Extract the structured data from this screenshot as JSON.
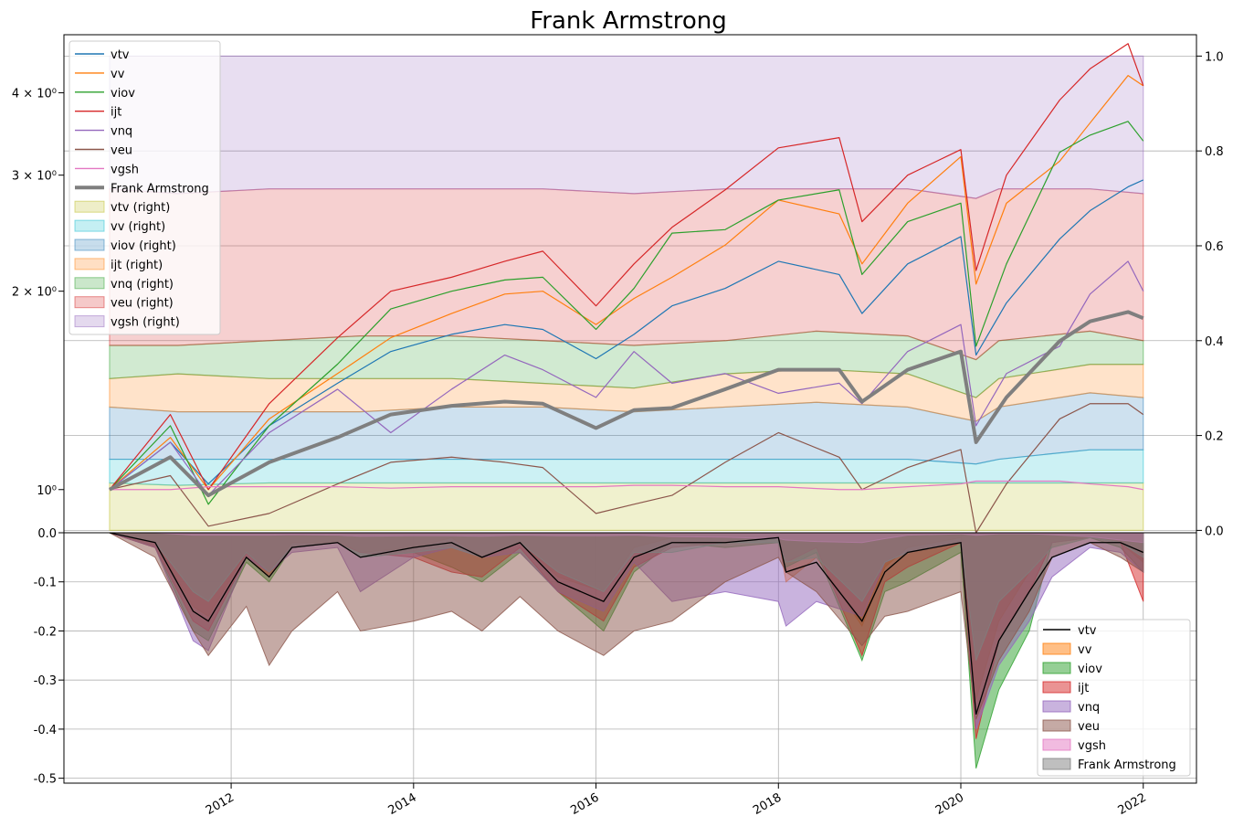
{
  "colors": {
    "vtv": "#1f77b4",
    "vv": "#ff7f0e",
    "viov": "#2ca02c",
    "ijt": "#d62728",
    "vnq": "#9467bd",
    "veu": "#8c564b",
    "vgsh": "#e377c2",
    "frank": "#7f7f7f",
    "fill_vtv": "#bcbd22",
    "fill_vv": "#17becf",
    "fill_viov": "#1f77b4",
    "fill_ijt": "#ff7f0e",
    "fill_vnq": "#2ca02c",
    "fill_veu": "#d62728",
    "fill_vgsh": "#9467bd",
    "dd_vtv": "#000000"
  },
  "chart_data": [
    {
      "type": "line",
      "title": "Frank Armstrong",
      "yscale": "log",
      "ylim": [
        0.86,
        4.9
      ],
      "xlim": [
        "2010-03-01",
        "2022-08-01"
      ],
      "left_ytick_labels": [
        {
          "value": 1,
          "label": "10⁰"
        },
        {
          "value": 2,
          "label": "2 × 10⁰"
        },
        {
          "value": 3,
          "label": "3 × 10⁰"
        },
        {
          "value": 4,
          "label": "4 × 10⁰"
        }
      ],
      "right_ylim": [
        -0.005,
        1.045
      ],
      "right_yticks": [
        "0.0",
        "0.2",
        "0.4",
        "0.6",
        "0.8",
        "1.0"
      ],
      "grid": true,
      "legend_position": "top-left",
      "legend": [
        "vtv",
        "vv",
        "viov",
        "ijt",
        "vnq",
        "veu",
        "vgsh",
        "Frank Armstrong",
        "vtv (right)",
        "vv (right)",
        "viov (right)",
        "ijt (right)",
        "vnq (right)",
        "veu (right)",
        "vgsh (right)"
      ],
      "x_dates": [
        "2010-09",
        "2011-05",
        "2011-10",
        "2012-06",
        "2013-03",
        "2013-10",
        "2014-06",
        "2015-01",
        "2015-06",
        "2016-01",
        "2016-06",
        "2016-11",
        "2017-06",
        "2018-01",
        "2018-09",
        "2018-12",
        "2019-06",
        "2020-01",
        "2020-03",
        "2020-07",
        "2021-02",
        "2021-06",
        "2021-11",
        "2022-01"
      ],
      "series": [
        {
          "name": "vtv",
          "values": [
            1.0,
            1.18,
            1.02,
            1.25,
            1.45,
            1.62,
            1.72,
            1.78,
            1.75,
            1.58,
            1.72,
            1.9,
            2.02,
            2.22,
            2.12,
            1.85,
            2.2,
            2.42,
            1.6,
            1.92,
            2.4,
            2.65,
            2.88,
            2.95
          ]
        },
        {
          "name": "vv",
          "values": [
            1.0,
            1.2,
            1.0,
            1.28,
            1.5,
            1.7,
            1.85,
            1.98,
            2.0,
            1.78,
            1.95,
            2.1,
            2.35,
            2.75,
            2.62,
            2.2,
            2.72,
            3.2,
            2.05,
            2.72,
            3.15,
            3.6,
            4.25,
            4.1
          ]
        },
        {
          "name": "viov",
          "values": [
            1.0,
            1.25,
            0.95,
            1.25,
            1.55,
            1.88,
            2.0,
            2.08,
            2.1,
            1.75,
            2.02,
            2.45,
            2.48,
            2.75,
            2.85,
            2.12,
            2.55,
            2.72,
            1.65,
            2.2,
            3.25,
            3.45,
            3.62,
            3.38
          ]
        },
        {
          "name": "ijt",
          "values": [
            1.0,
            1.3,
            1.0,
            1.35,
            1.7,
            2.0,
            2.1,
            2.22,
            2.3,
            1.9,
            2.2,
            2.5,
            2.85,
            3.3,
            3.42,
            2.55,
            3.0,
            3.28,
            2.15,
            3.0,
            3.9,
            4.35,
            4.75,
            4.1
          ]
        },
        {
          "name": "vnq",
          "values": [
            1.0,
            1.18,
            0.98,
            1.22,
            1.42,
            1.22,
            1.42,
            1.6,
            1.52,
            1.38,
            1.62,
            1.45,
            1.5,
            1.4,
            1.45,
            1.35,
            1.62,
            1.78,
            1.25,
            1.5,
            1.65,
            1.98,
            2.22,
            2.0
          ]
        },
        {
          "name": "veu",
          "values": [
            1.0,
            1.05,
            0.88,
            0.92,
            1.02,
            1.1,
            1.12,
            1.1,
            1.08,
            0.92,
            0.95,
            0.98,
            1.1,
            1.22,
            1.12,
            1.0,
            1.08,
            1.15,
            0.86,
            1.02,
            1.28,
            1.35,
            1.35,
            1.3
          ]
        },
        {
          "name": "vgsh",
          "values": [
            1.0,
            1.0,
            1.01,
            1.01,
            1.01,
            1.005,
            1.01,
            1.01,
            1.01,
            1.01,
            1.015,
            1.015,
            1.01,
            1.01,
            1.0,
            1.0,
            1.01,
            1.02,
            1.03,
            1.03,
            1.03,
            1.02,
            1.01,
            1.0
          ]
        },
        {
          "name": "Frank Armstrong",
          "values": [
            1.0,
            1.12,
            0.98,
            1.1,
            1.2,
            1.3,
            1.34,
            1.36,
            1.35,
            1.24,
            1.32,
            1.33,
            1.42,
            1.52,
            1.52,
            1.36,
            1.52,
            1.62,
            1.18,
            1.38,
            1.68,
            1.8,
            1.86,
            1.82
          ]
        }
      ],
      "allocation_dates": [
        "2010-09",
        "2011-06",
        "2012-06",
        "2013-06",
        "2014-06",
        "2015-06",
        "2016-06",
        "2017-06",
        "2018-06",
        "2019-06",
        "2020-03",
        "2020-06",
        "2021-06",
        "2022-01"
      ],
      "allocation_series": [
        {
          "name": "vtv (right)",
          "values": [
            0.1,
            0.095,
            0.1,
            0.1,
            0.1,
            0.1,
            0.1,
            0.1,
            0.1,
            0.1,
            0.1,
            0.1,
            0.1,
            0.1
          ]
        },
        {
          "name": "vv (right)",
          "values": [
            0.15,
            0.15,
            0.15,
            0.15,
            0.15,
            0.15,
            0.15,
            0.15,
            0.15,
            0.15,
            0.14,
            0.15,
            0.17,
            0.17
          ]
        },
        {
          "name": "viov (right)",
          "values": [
            0.26,
            0.25,
            0.25,
            0.25,
            0.26,
            0.26,
            0.25,
            0.26,
            0.27,
            0.26,
            0.23,
            0.26,
            0.29,
            0.28
          ]
        },
        {
          "name": "ijt (right)",
          "values": [
            0.32,
            0.33,
            0.32,
            0.32,
            0.32,
            0.31,
            0.3,
            0.33,
            0.34,
            0.33,
            0.28,
            0.32,
            0.35,
            0.35
          ]
        },
        {
          "name": "vnq (right)",
          "values": [
            0.39,
            0.39,
            0.4,
            0.41,
            0.41,
            0.4,
            0.39,
            0.4,
            0.42,
            0.41,
            0.36,
            0.4,
            0.42,
            0.4
          ]
        },
        {
          "name": "veu (right)",
          "values": [
            0.72,
            0.71,
            0.72,
            0.72,
            0.72,
            0.72,
            0.71,
            0.72,
            0.72,
            0.72,
            0.7,
            0.72,
            0.72,
            0.71
          ]
        },
        {
          "name": "vgsh (right)",
          "values": [
            1.0,
            1.0,
            1.0,
            1.0,
            1.0,
            1.0,
            1.0,
            1.0,
            1.0,
            1.0,
            1.0,
            1.0,
            1.0,
            1.0
          ]
        }
      ]
    },
    {
      "type": "area",
      "ylim": [
        -0.51,
        0.0
      ],
      "yticks": [
        "0.0",
        "-0.1",
        "-0.2",
        "-0.3",
        "-0.4",
        "-0.5"
      ],
      "xticks": [
        "2012",
        "2014",
        "2016",
        "2018",
        "2020",
        "2022"
      ],
      "grid": true,
      "legend_position": "bottom-right",
      "legend": [
        "vtv",
        "vv",
        "viov",
        "ijt",
        "vnq",
        "veu",
        "vgsh",
        "Frank Armstrong"
      ],
      "x_dates": [
        "2010-09",
        "2011-03",
        "2011-08",
        "2011-10",
        "2012-03",
        "2012-06",
        "2012-09",
        "2013-03",
        "2013-06",
        "2014-01",
        "2014-06",
        "2014-10",
        "2015-03",
        "2015-08",
        "2016-02",
        "2016-06",
        "2016-11",
        "2017-06",
        "2018-01",
        "2018-02",
        "2018-06",
        "2018-12",
        "2019-03",
        "2019-06",
        "2020-01",
        "2020-03",
        "2020-06",
        "2020-10",
        "2021-01",
        "2021-06",
        "2021-10",
        "2022-01"
      ],
      "series": [
        {
          "name": "vtv",
          "values": [
            0.0,
            -0.02,
            -0.16,
            -0.18,
            -0.05,
            -0.09,
            -0.03,
            -0.02,
            -0.05,
            -0.03,
            -0.02,
            -0.05,
            -0.02,
            -0.1,
            -0.14,
            -0.05,
            -0.02,
            -0.02,
            -0.01,
            -0.08,
            -0.06,
            -0.18,
            -0.08,
            -0.04,
            -0.02,
            -0.37,
            -0.22,
            -0.12,
            -0.05,
            -0.02,
            -0.02,
            -0.04
          ]
        },
        {
          "name": "vv",
          "values": [
            0.0,
            -0.02,
            -0.15,
            -0.17,
            -0.04,
            -0.08,
            -0.02,
            -0.02,
            -0.04,
            -0.03,
            -0.01,
            -0.05,
            -0.02,
            -0.09,
            -0.12,
            -0.03,
            -0.01,
            -0.01,
            -0.01,
            -0.1,
            -0.05,
            -0.19,
            -0.07,
            -0.03,
            -0.01,
            -0.34,
            -0.18,
            -0.08,
            -0.03,
            -0.01,
            -0.02,
            -0.06
          ]
        },
        {
          "name": "viov",
          "values": [
            0.0,
            -0.03,
            -0.2,
            -0.22,
            -0.06,
            -0.1,
            -0.03,
            -0.02,
            -0.05,
            -0.04,
            -0.07,
            -0.1,
            -0.04,
            -0.12,
            -0.2,
            -0.08,
            -0.02,
            -0.03,
            -0.02,
            -0.07,
            -0.04,
            -0.26,
            -0.12,
            -0.1,
            -0.04,
            -0.48,
            -0.32,
            -0.2,
            -0.02,
            -0.01,
            -0.03,
            -0.08
          ]
        },
        {
          "name": "ijt",
          "values": [
            0.0,
            -0.03,
            -0.18,
            -0.2,
            -0.05,
            -0.09,
            -0.03,
            -0.02,
            -0.04,
            -0.05,
            -0.08,
            -0.09,
            -0.03,
            -0.12,
            -0.18,
            -0.07,
            -0.03,
            -0.02,
            -0.01,
            -0.06,
            -0.03,
            -0.25,
            -0.1,
            -0.07,
            -0.02,
            -0.42,
            -0.22,
            -0.12,
            -0.02,
            -0.01,
            -0.02,
            -0.14
          ]
        },
        {
          "name": "vnq",
          "values": [
            0.0,
            -0.03,
            -0.22,
            -0.24,
            -0.05,
            -0.08,
            -0.04,
            -0.03,
            -0.12,
            -0.05,
            -0.03,
            -0.05,
            -0.04,
            -0.12,
            -0.16,
            -0.06,
            -0.14,
            -0.12,
            -0.14,
            -0.19,
            -0.14,
            -0.17,
            -0.06,
            -0.04,
            -0.02,
            -0.4,
            -0.27,
            -0.18,
            -0.09,
            -0.03,
            -0.04,
            -0.08
          ]
        },
        {
          "name": "veu",
          "values": [
            0.0,
            -0.05,
            -0.2,
            -0.25,
            -0.15,
            -0.27,
            -0.2,
            -0.12,
            -0.2,
            -0.18,
            -0.16,
            -0.2,
            -0.13,
            -0.2,
            -0.25,
            -0.2,
            -0.18,
            -0.1,
            -0.05,
            -0.08,
            -0.12,
            -0.23,
            -0.17,
            -0.16,
            -0.12,
            -0.38,
            -0.26,
            -0.16,
            -0.05,
            -0.02,
            -0.05,
            -0.08
          ]
        },
        {
          "name": "vgsh",
          "values": [
            0.0,
            0.0,
            -0.005,
            -0.005,
            -0.005,
            -0.005,
            -0.004,
            -0.005,
            -0.007,
            -0.006,
            -0.006,
            -0.007,
            -0.005,
            -0.006,
            -0.006,
            -0.005,
            -0.008,
            -0.009,
            -0.012,
            -0.015,
            -0.018,
            -0.02,
            -0.012,
            -0.005,
            -0.002,
            -0.005,
            -0.002,
            -0.002,
            -0.004,
            -0.008,
            -0.015,
            -0.02
          ]
        },
        {
          "name": "Frank Armstrong",
          "values": [
            0.0,
            -0.02,
            -0.12,
            -0.14,
            -0.04,
            -0.08,
            -0.03,
            -0.02,
            -0.05,
            -0.04,
            -0.03,
            -0.05,
            -0.02,
            -0.08,
            -0.12,
            -0.04,
            -0.04,
            -0.02,
            -0.02,
            -0.06,
            -0.05,
            -0.14,
            -0.06,
            -0.04,
            -0.02,
            -0.26,
            -0.14,
            -0.08,
            -0.03,
            -0.01,
            -0.02,
            -0.05
          ]
        }
      ]
    }
  ]
}
